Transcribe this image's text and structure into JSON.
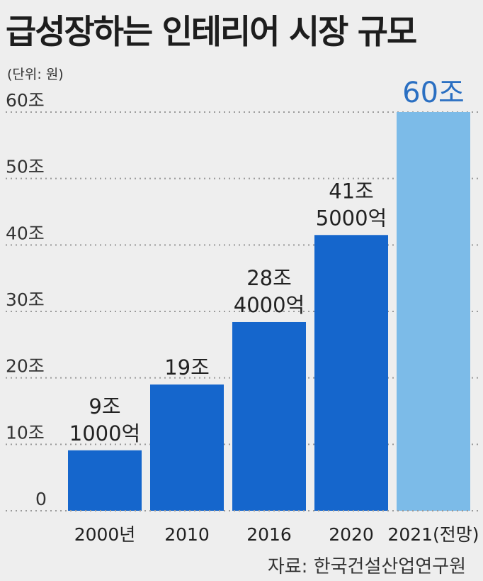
{
  "title": "급성장하는 인테리어 시장 규모",
  "unit_note": "(단위: 원)",
  "source": "자료: 한국건설산업연구원",
  "colors": {
    "bar": "#1566cc",
    "bar_highlight": "#7cbbe8",
    "background": "#eeeeee",
    "gridline": "#9a9a9a"
  },
  "chart_data": {
    "type": "bar",
    "title": "급성장하는 인테리어 시장 규모",
    "ylabel": "",
    "xlabel": "",
    "ylim": [
      0,
      60
    ],
    "grid": true,
    "y_ticks": [
      {
        "value": 0,
        "label": "0"
      },
      {
        "value": 10,
        "label": "10조"
      },
      {
        "value": 20,
        "label": "20조"
      },
      {
        "value": 30,
        "label": "30조"
      },
      {
        "value": 40,
        "label": "40조"
      },
      {
        "value": 50,
        "label": "50조"
      },
      {
        "value": 60,
        "label": "60조"
      }
    ],
    "categories": [
      "2000년",
      "2010",
      "2016",
      "2020",
      "2021(전망)"
    ],
    "values": [
      9.1,
      19,
      28.4,
      41.5,
      60
    ],
    "data_labels": [
      [
        "9조",
        "1000억"
      ],
      [
        "19조"
      ],
      [
        "28조",
        "4000억"
      ],
      [
        "41조",
        "5000억"
      ],
      [
        "60조"
      ]
    ],
    "highlight_index": 4
  }
}
